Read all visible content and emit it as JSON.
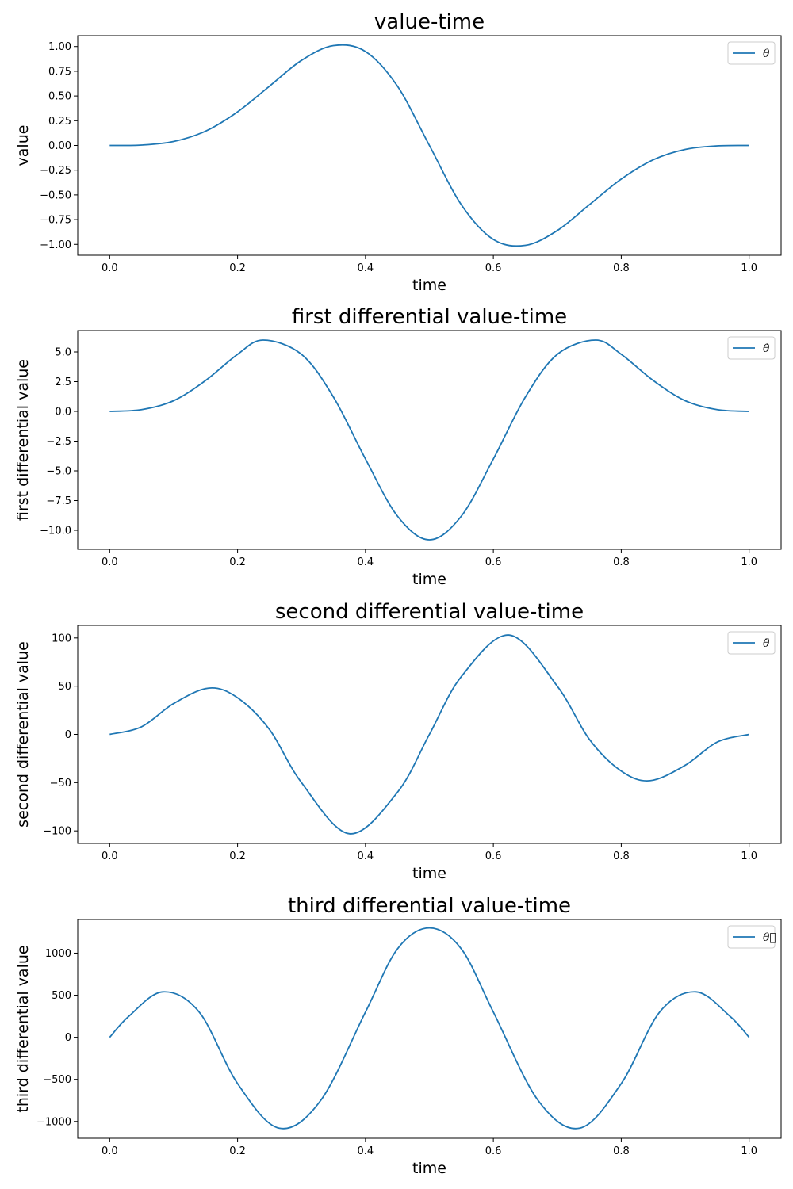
{
  "colors": {
    "series": "#1f77b4",
    "frame": "#000000",
    "legend_border": "#cccccc"
  },
  "chart_data": [
    {
      "type": "line",
      "title": "value-time",
      "xlabel": "time",
      "ylabel": "value",
      "xlim": [
        -0.05,
        1.05
      ],
      "ylim": [
        -1.11,
        1.11
      ],
      "xticks": [
        0.0,
        0.2,
        0.4,
        0.6,
        0.8,
        1.0
      ],
      "xtick_labels": [
        "0.0",
        "0.2",
        "0.4",
        "0.6",
        "0.8",
        "1.0"
      ],
      "yticks": [
        1.0,
        0.75,
        0.5,
        0.25,
        0.0,
        -0.25,
        -0.5,
        -0.75,
        -1.0
      ],
      "ytick_labels": [
        "1.00",
        "0.75",
        "0.50",
        "0.25",
        "0.00",
        "−0.25",
        "−0.50",
        "−0.75",
        "−1.00"
      ],
      "legend_position": "upper-right",
      "grid": false,
      "series": [
        {
          "name": "θ",
          "x": [
            0.0,
            0.05,
            0.1,
            0.15,
            0.2,
            0.25,
            0.3,
            0.35,
            0.4,
            0.45,
            0.5,
            0.55,
            0.6,
            0.65,
            0.7,
            0.75,
            0.8,
            0.85,
            0.9,
            0.95,
            1.0
          ],
          "y": [
            0.0,
            0.004,
            0.04,
            0.145,
            0.34,
            0.6,
            0.86,
            1.01,
            0.95,
            0.6,
            0.0,
            -0.6,
            -0.95,
            -1.01,
            -0.86,
            -0.6,
            -0.34,
            -0.145,
            -0.04,
            -0.004,
            0.0
          ]
        }
      ]
    },
    {
      "type": "line",
      "title": "first differential value-time",
      "xlabel": "time",
      "ylabel": "first differential value",
      "xlim": [
        -0.05,
        1.05
      ],
      "ylim": [
        -11.6,
        6.8
      ],
      "xticks": [
        0.0,
        0.2,
        0.4,
        0.6,
        0.8,
        1.0
      ],
      "xtick_labels": [
        "0.0",
        "0.2",
        "0.4",
        "0.6",
        "0.8",
        "1.0"
      ],
      "yticks": [
        5.0,
        2.5,
        0.0,
        -2.5,
        -5.0,
        -7.5,
        -10.0
      ],
      "ytick_labels": [
        "5.0",
        "2.5",
        "0.0",
        "−2.5",
        "−5.0",
        "−7.5",
        "−10.0"
      ],
      "legend_position": "upper-right",
      "grid": false,
      "series": [
        {
          "name": "θ̇",
          "x": [
            0.0,
            0.05,
            0.1,
            0.15,
            0.2,
            0.24,
            0.3,
            0.35,
            0.4,
            0.45,
            0.5,
            0.55,
            0.6,
            0.65,
            0.7,
            0.76,
            0.8,
            0.85,
            0.9,
            0.95,
            1.0
          ],
          "y": [
            0.0,
            0.15,
            0.9,
            2.6,
            4.8,
            6.0,
            4.8,
            1.2,
            -4.0,
            -8.8,
            -10.8,
            -8.8,
            -4.0,
            1.2,
            4.8,
            6.0,
            4.8,
            2.6,
            0.9,
            0.15,
            0.0
          ]
        }
      ]
    },
    {
      "type": "line",
      "title": "second differential value-time",
      "xlabel": "time",
      "ylabel": "second differential value",
      "xlim": [
        -0.05,
        1.05
      ],
      "ylim": [
        -113,
        113
      ],
      "xticks": [
        0.0,
        0.2,
        0.4,
        0.6,
        0.8,
        1.0
      ],
      "xtick_labels": [
        "0.0",
        "0.2",
        "0.4",
        "0.6",
        "0.8",
        "1.0"
      ],
      "yticks": [
        100,
        50,
        0,
        -50,
        -100
      ],
      "ytick_labels": [
        "100",
        "50",
        "0",
        "−50",
        "−100"
      ],
      "legend_position": "upper-right",
      "grid": false,
      "series": [
        {
          "name": "θ̈",
          "x": [
            0.0,
            0.05,
            0.1,
            0.155,
            0.2,
            0.25,
            0.3,
            0.375,
            0.45,
            0.5,
            0.55,
            0.625,
            0.7,
            0.75,
            0.8,
            0.845,
            0.9,
            0.95,
            1.0
          ],
          "y": [
            0.0,
            8.0,
            32.0,
            48.0,
            38.0,
            5.0,
            -50.0,
            -103.0,
            -60.0,
            0.0,
            60.0,
            103.0,
            50.0,
            -5.0,
            -38.0,
            -48.0,
            -32.0,
            -8.0,
            0.0
          ]
        }
      ]
    },
    {
      "type": "line",
      "title": "third differential value-time",
      "xlabel": "time",
      "ylabel": "third differential value",
      "xlim": [
        -0.05,
        1.05
      ],
      "ylim": [
        -1200,
        1400
      ],
      "xticks": [
        0.0,
        0.2,
        0.4,
        0.6,
        0.8,
        1.0
      ],
      "xtick_labels": [
        "0.0",
        "0.2",
        "0.4",
        "0.6",
        "0.8",
        "1.0"
      ],
      "yticks": [
        1000,
        500,
        0,
        -500,
        -1000
      ],
      "ytick_labels": [
        "1000",
        "500",
        "0",
        "−500",
        "−1000"
      ],
      "legend_position": "upper-right",
      "grid": false,
      "series": [
        {
          "name": "θ⃛",
          "x": [
            0.0,
            0.03,
            0.083,
            0.14,
            0.2,
            0.265,
            0.33,
            0.4,
            0.45,
            0.5,
            0.55,
            0.6,
            0.67,
            0.735,
            0.8,
            0.86,
            0.917,
            0.97,
            1.0
          ],
          "y": [
            0.0,
            250.0,
            540.0,
            300.0,
            -550.0,
            -1080.0,
            -750.0,
            300.0,
            1050.0,
            1300.0,
            1050.0,
            300.0,
            -750.0,
            -1080.0,
            -550.0,
            300.0,
            540.0,
            250.0,
            0.0
          ]
        }
      ]
    }
  ]
}
